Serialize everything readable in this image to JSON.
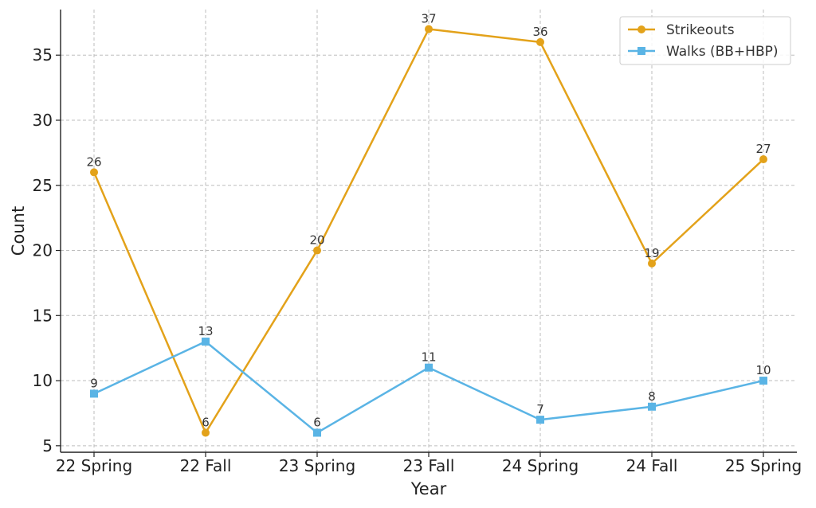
{
  "chart_data": {
    "type": "line",
    "title": "",
    "xlabel": "Year",
    "ylabel": "Count",
    "categories": [
      "22 Spring",
      "22 Fall",
      "23 Spring",
      "23 Fall",
      "24 Spring",
      "24 Fall",
      "25 Spring"
    ],
    "ylim": [
      4.5,
      38.5
    ],
    "yticks": [
      5,
      10,
      15,
      20,
      25,
      30,
      35
    ],
    "grid": true,
    "legend_position": "top-right",
    "series": [
      {
        "name": "Strikeouts",
        "color": "#E3A21A",
        "marker": "circle",
        "values": [
          26,
          6,
          20,
          37,
          36,
          19,
          27
        ],
        "labels": [
          "26",
          "6",
          "20",
          "37",
          "36",
          "19",
          "27"
        ]
      },
      {
        "name": "Walks (BB+HBP)",
        "color": "#5AB4E5",
        "marker": "square",
        "values": [
          9,
          13,
          6,
          11,
          7,
          8,
          10
        ],
        "labels": [
          "9",
          "13",
          "6",
          "11",
          "7",
          "8",
          "10"
        ]
      }
    ]
  }
}
